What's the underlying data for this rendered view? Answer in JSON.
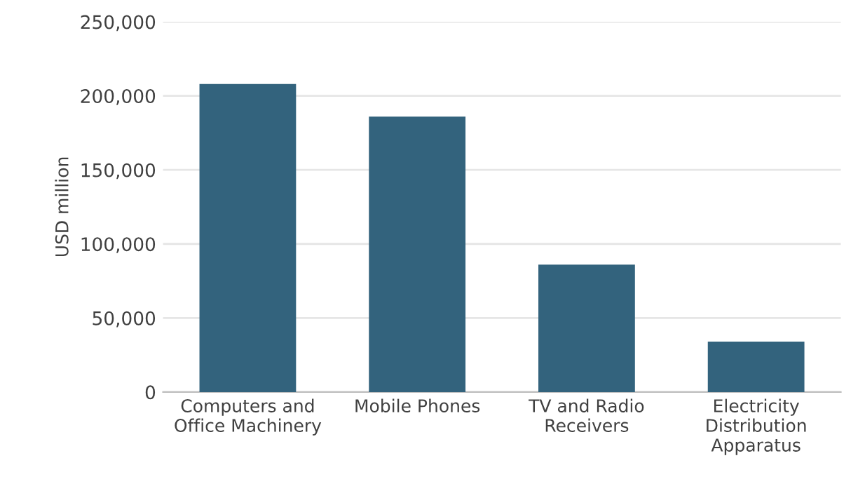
{
  "chart_data": {
    "type": "bar",
    "ylabel": "USD million",
    "categories": [
      "Computers and\nOffice Machinery",
      "Mobile Phones",
      "TV and Radio\nReceivers",
      "Electricity\nDistribution\nApparatus"
    ],
    "values": [
      208000,
      186000,
      86000,
      34000
    ],
    "color": "#33637d",
    "ylim": [
      0,
      250000
    ],
    "yticks": [
      {
        "value": 0,
        "label": "0"
      },
      {
        "value": 50000,
        "label": "50,000"
      },
      {
        "value": 100000,
        "label": "100,000"
      },
      {
        "value": 150000,
        "label": "150,000"
      },
      {
        "value": 200000,
        "label": "200,000"
      },
      {
        "value": 250000,
        "label": "250,000"
      }
    ],
    "grid": "y"
  }
}
